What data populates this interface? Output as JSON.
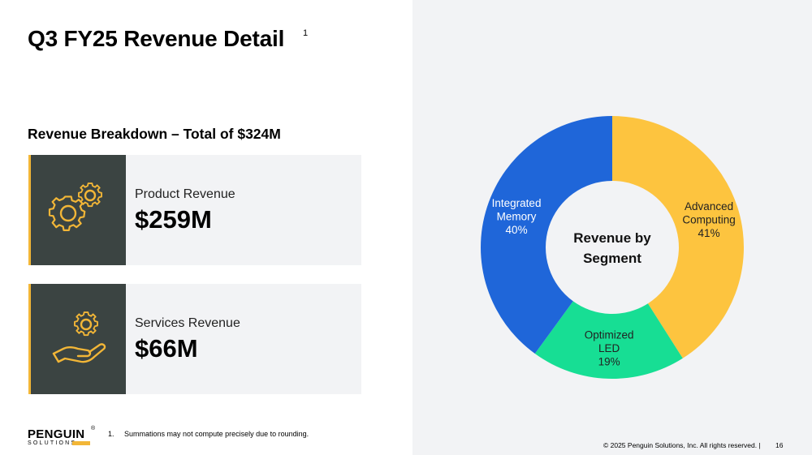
{
  "slide": {
    "title": "Q3 FY25 Revenue Detail",
    "title_footnote_ref": "1",
    "section_heading": "Revenue Breakdown – Total of $324M"
  },
  "cards": [
    {
      "label": "Product Revenue",
      "value": "$259M",
      "icon": "gears-icon"
    },
    {
      "label": "Services Revenue",
      "value": "$66M",
      "icon": "hand-gear-icon"
    }
  ],
  "footer": {
    "logo_name": "PENGUIN",
    "logo_tm": "®",
    "logo_sub": "SOLUTIONS",
    "footnote_number": "1.",
    "footnote_text": "Summations may not compute precisely due to rounding.",
    "copyright": "© 2025 Penguin Solutions, Inc. All rights reserved.  |",
    "page_number": "16"
  },
  "colors": {
    "accent_gold": "#f2b637",
    "icon_box": "#3b4442",
    "card_bg": "#f2f3f5",
    "right_panel_bg": "#f2f3f5"
  },
  "chart_data": {
    "type": "pie",
    "style": "donut",
    "center_label": [
      "Revenue by",
      "Segment"
    ],
    "slices": [
      {
        "name": "Advanced Computing",
        "label_lines": [
          "Advanced",
          "Computing"
        ],
        "percent_label": "41%",
        "value": 41,
        "color": "#fdc43f",
        "text_color": "#222222"
      },
      {
        "name": "Optimized LED",
        "label_lines": [
          "Optimized",
          "LED"
        ],
        "percent_label": "19%",
        "value": 19,
        "color": "#17de94",
        "text_color": "#222222"
      },
      {
        "name": "Integrated Memory",
        "label_lines": [
          "Integrated",
          "Memory"
        ],
        "percent_label": "40%",
        "value": 40,
        "color": "#1f66d9",
        "text_color": "#ffffff"
      }
    ],
    "start_angle_deg": 0,
    "direction": "clockwise"
  }
}
